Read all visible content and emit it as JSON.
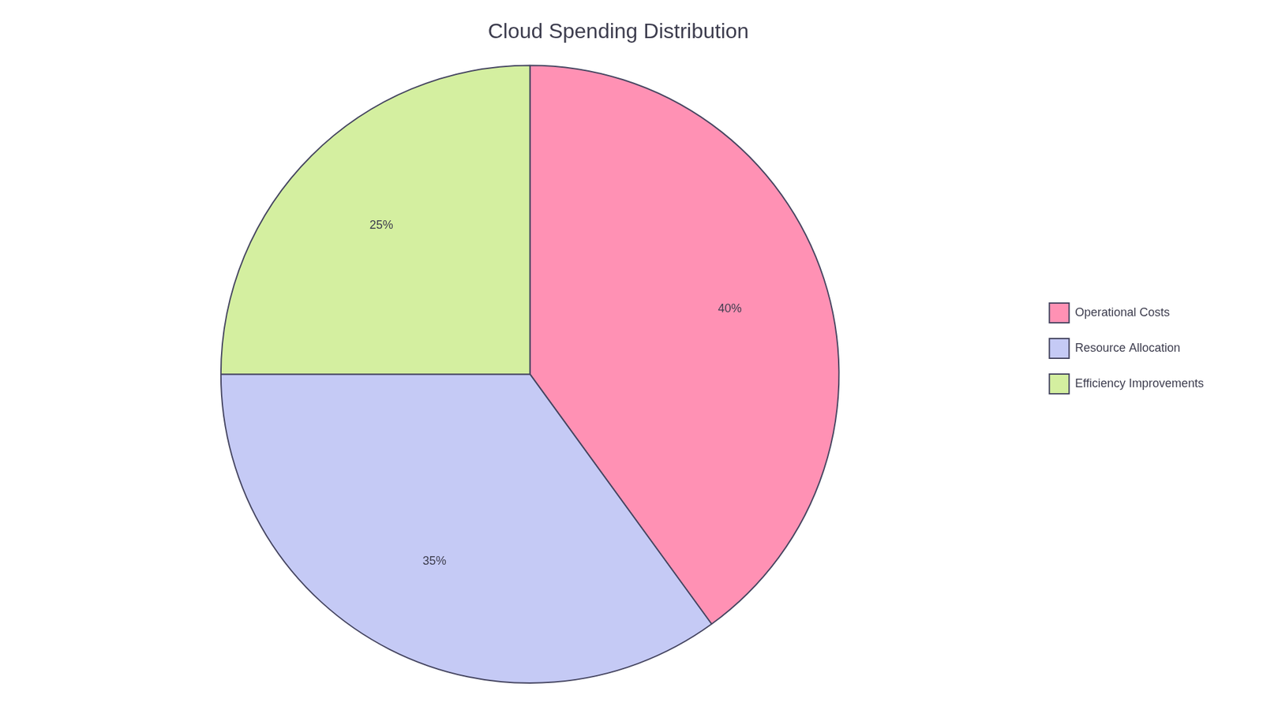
{
  "chart_data": {
    "type": "pie",
    "title": "Cloud Spending Distribution",
    "categories": [
      "Operational Costs",
      "Resource Allocation",
      "Efficiency Improvements"
    ],
    "values": [
      40,
      35,
      25
    ],
    "value_labels": [
      "40%",
      "35%",
      "25%"
    ],
    "colors": [
      "#FF91B4",
      "#C5CAF5",
      "#D4EFA0"
    ],
    "data_labels": true,
    "legend": "right"
  }
}
